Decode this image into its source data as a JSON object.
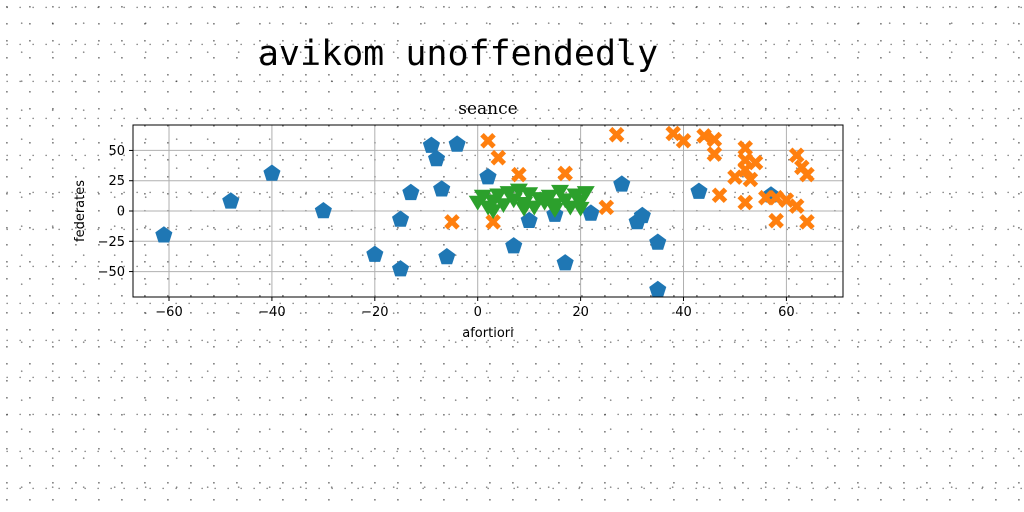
{
  "figure": {
    "title": "avikom unoffendedly"
  },
  "chart_data": {
    "type": "scatter",
    "title": "seance",
    "xlabel": "afortiori",
    "ylabel": "federates",
    "xlim": [
      -67,
      71
    ],
    "ylim": [
      -71,
      71
    ],
    "xticks": [
      -60,
      -40,
      -20,
      0,
      20,
      40,
      60
    ],
    "yticks": [
      -50,
      -25,
      0,
      25,
      50
    ],
    "grid": true,
    "series": [
      {
        "marker": "pentagon",
        "color": "#1f77b4",
        "points": [
          [
            -61,
            -20
          ],
          [
            -48,
            8
          ],
          [
            -40,
            31
          ],
          [
            -30,
            0
          ],
          [
            -20,
            -36
          ],
          [
            -15,
            -48
          ],
          [
            -15,
            -7
          ],
          [
            -13,
            15
          ],
          [
            -9,
            54
          ],
          [
            -8,
            43
          ],
          [
            -7,
            18
          ],
          [
            -6,
            -38
          ],
          [
            -4,
            55
          ],
          [
            2,
            28
          ],
          [
            7,
            -29
          ],
          [
            10,
            -8
          ],
          [
            15,
            -3
          ],
          [
            17,
            -43
          ],
          [
            22,
            -2
          ],
          [
            28,
            22
          ],
          [
            31,
            -9
          ],
          [
            32,
            -4
          ],
          [
            35,
            -26
          ],
          [
            35,
            -65
          ],
          [
            43,
            16
          ],
          [
            57,
            13
          ]
        ]
      },
      {
        "marker": "x",
        "color": "#ff7f0e",
        "points": [
          [
            2,
            58
          ],
          [
            4,
            44
          ],
          [
            -5,
            -9
          ],
          [
            3,
            -9
          ],
          [
            8,
            30
          ],
          [
            17,
            31
          ],
          [
            25,
            3
          ],
          [
            27,
            63
          ],
          [
            38,
            64
          ],
          [
            40,
            58
          ],
          [
            44,
            62
          ],
          [
            46,
            59
          ],
          [
            46,
            47
          ],
          [
            47,
            13
          ],
          [
            50,
            28
          ],
          [
            52,
            52
          ],
          [
            52,
            42
          ],
          [
            52,
            34
          ],
          [
            53,
            26
          ],
          [
            54,
            40
          ],
          [
            52,
            7
          ],
          [
            56,
            11
          ],
          [
            58,
            -8
          ],
          [
            60,
            9
          ],
          [
            62,
            4
          ],
          [
            62,
            46
          ],
          [
            63,
            36
          ],
          [
            64,
            30
          ],
          [
            64,
            -9
          ],
          [
            58,
            11
          ]
        ]
      },
      {
        "marker": "triangle-down",
        "color": "#2ca02c",
        "points": [
          [
            0,
            7
          ],
          [
            1,
            12
          ],
          [
            2,
            3
          ],
          [
            3,
            8
          ],
          [
            4,
            13
          ],
          [
            5,
            5
          ],
          [
            6,
            15
          ],
          [
            7,
            9
          ],
          [
            8,
            17
          ],
          [
            9,
            6
          ],
          [
            10,
            14
          ],
          [
            11,
            3
          ],
          [
            12,
            10
          ],
          [
            13,
            7
          ],
          [
            14,
            12
          ],
          [
            15,
            5
          ],
          [
            16,
            16
          ],
          [
            17,
            9
          ],
          [
            18,
            3
          ],
          [
            19,
            13
          ],
          [
            20,
            8
          ],
          [
            21,
            15
          ],
          [
            3,
            0
          ],
          [
            9,
            2
          ],
          [
            15,
            1
          ],
          [
            20,
            2
          ]
        ]
      }
    ]
  }
}
